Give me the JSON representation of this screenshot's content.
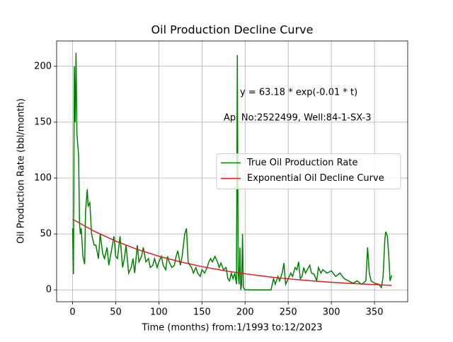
{
  "chart_data": {
    "type": "line",
    "title": "Oil Production Decline Curve",
    "xlabel": "Time (months) from:1/1993 to:12/2023",
    "ylabel": "Oil Production Rate (bbl/month)",
    "annotations": [
      "y = 63.18 * exp(-0.01 * t)",
      "Api No:2522499, Well:84-1-SX-3"
    ],
    "xlim": [
      -18.5,
      388.5
    ],
    "ylim": [
      -10.6,
      222.6
    ],
    "xticks": [
      0,
      50,
      100,
      150,
      200,
      250,
      300,
      350
    ],
    "yticks": [
      0,
      50,
      100,
      150,
      200
    ],
    "grid": true,
    "legend": "center right",
    "series": [
      {
        "name": "True Oil Production Rate",
        "color": "#008000",
        "x": [
          0,
          1,
          2,
          3,
          4,
          5,
          7,
          8,
          9,
          10,
          12,
          14,
          15,
          17,
          18,
          20,
          22,
          25,
          27,
          30,
          32,
          35,
          37,
          40,
          42,
          45,
          48,
          50,
          52,
          55,
          58,
          60,
          62,
          65,
          68,
          70,
          72,
          75,
          77,
          80,
          82,
          85,
          88,
          90,
          93,
          95,
          98,
          100,
          103,
          105,
          108,
          110,
          112,
          115,
          118,
          120,
          122,
          125,
          127,
          130,
          132,
          134,
          136,
          138,
          140,
          143,
          145,
          148,
          150,
          153,
          156,
          158,
          160,
          162,
          165,
          168,
          170,
          172,
          175,
          178,
          180,
          182,
          184,
          186,
          188,
          190,
          191,
          192,
          193,
          194,
          195,
          196,
          197,
          198,
          200,
          210,
          220,
          230,
          233,
          235,
          238,
          240,
          243,
          245,
          247,
          250,
          253,
          255,
          258,
          260,
          262,
          264,
          266,
          268,
          270,
          272,
          275,
          277,
          280,
          283,
          285,
          288,
          290,
          295,
          300,
          305,
          310,
          315,
          320,
          325,
          330,
          335,
          340,
          342,
          344,
          346,
          350,
          355,
          358,
          360,
          362,
          363,
          365,
          367,
          368,
          370
        ],
        "values": [
          55,
          14,
          200,
          150,
          212,
          140,
          120,
          60,
          50,
          55,
          30,
          23,
          70,
          90,
          75,
          78,
          50,
          40,
          40,
          28,
          50,
          32,
          28,
          38,
          22,
          35,
          48,
          30,
          28,
          48,
          20,
          28,
          40,
          15,
          20,
          28,
          15,
          40,
          25,
          30,
          38,
          25,
          28,
          20,
          22,
          28,
          20,
          25,
          30,
          22,
          18,
          30,
          25,
          20,
          22,
          30,
          35,
          22,
          30,
          50,
          55,
          25,
          22,
          20,
          15,
          20,
          15,
          12,
          18,
          15,
          20,
          25,
          28,
          25,
          30,
          25,
          20,
          24,
          18,
          20,
          10,
          8,
          15,
          10,
          15,
          5,
          210,
          15,
          5,
          38,
          0,
          5,
          50,
          2,
          0,
          0,
          0,
          0,
          10,
          5,
          12,
          8,
          15,
          24,
          5,
          10,
          15,
          12,
          20,
          18,
          25,
          10,
          12,
          20,
          15,
          18,
          22,
          15,
          14,
          8,
          20,
          15,
          18,
          15,
          17,
          12,
          15,
          10,
          8,
          6,
          8,
          5,
          8,
          38,
          15,
          8,
          6,
          5,
          2,
          12,
          45,
          52,
          48,
          25,
          8,
          13
        ]
      },
      {
        "name": "Exponential Oil Decline Curve",
        "color": "#e41a1c",
        "x": [
          0,
          25,
          50,
          75,
          100,
          125,
          150,
          175,
          200,
          225,
          250,
          275,
          300,
          325,
          350,
          370
        ],
        "values": [
          63.2,
          52.5,
          43.6,
          36.2,
          30.1,
          25.0,
          20.8,
          17.3,
          14.4,
          11.9,
          9.9,
          8.2,
          6.8,
          5.7,
          4.7,
          4.0
        ]
      }
    ]
  }
}
